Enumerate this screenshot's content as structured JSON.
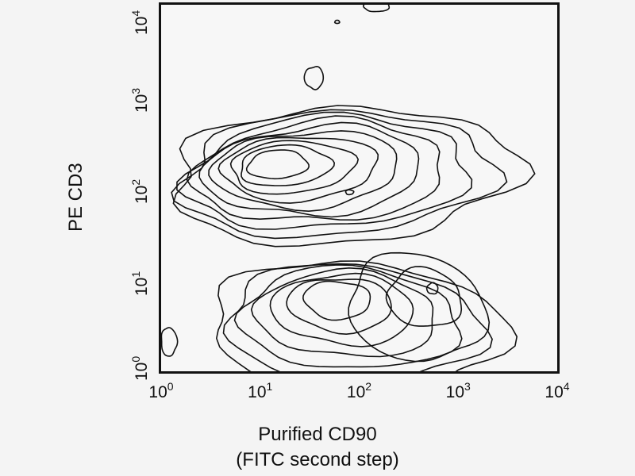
{
  "chart_data": {
    "type": "contour",
    "xlabel_lines": [
      "Purified CD90",
      "(FITC second step)"
    ],
    "ylabel": "PE CD3",
    "xscale": "log",
    "yscale": "log",
    "xlim": [
      1,
      10000
    ],
    "ylim": [
      1,
      10000
    ],
    "x_ticks": [
      {
        "value": 1,
        "base": "10",
        "exp": "0"
      },
      {
        "value": 10,
        "base": "10",
        "exp": "1"
      },
      {
        "value": 100,
        "base": "10",
        "exp": "2"
      },
      {
        "value": 1000,
        "base": "10",
        "exp": "3"
      },
      {
        "value": 10000,
        "base": "10",
        "exp": "4"
      }
    ],
    "y_ticks": [
      {
        "value": 1,
        "base": "10",
        "exp": "0"
      },
      {
        "value": 10,
        "base": "10",
        "exp": "1"
      },
      {
        "value": 100,
        "base": "10",
        "exp": "2"
      },
      {
        "value": 1000,
        "base": "10",
        "exp": "3"
      },
      {
        "value": 10000,
        "base": "10",
        "exp": "4"
      }
    ],
    "grid": false,
    "populations": [
      {
        "cd90": 15,
        "cd3": 180,
        "levels": 10
      },
      {
        "cd90": 60,
        "cd3": 6,
        "levels": 7
      },
      {
        "cd90": 550,
        "cd3": 8,
        "levels": 3
      }
    ],
    "line_color": "#111111"
  }
}
